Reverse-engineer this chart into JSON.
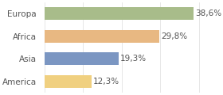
{
  "categories": [
    "America",
    "Asia",
    "Africa",
    "Europa"
  ],
  "values": [
    12.3,
    19.3,
    29.8,
    38.6
  ],
  "labels": [
    "12,3%",
    "19,3%",
    "29,8%",
    "38,6%"
  ],
  "bar_colors": [
    "#f0d080",
    "#7b96c2",
    "#e8b882",
    "#a8bc8a"
  ],
  "background_color": "#ffffff",
  "xlim": [
    0,
    42
  ],
  "bar_height": 0.55,
  "label_fontsize": 7.5,
  "tick_fontsize": 7.5
}
